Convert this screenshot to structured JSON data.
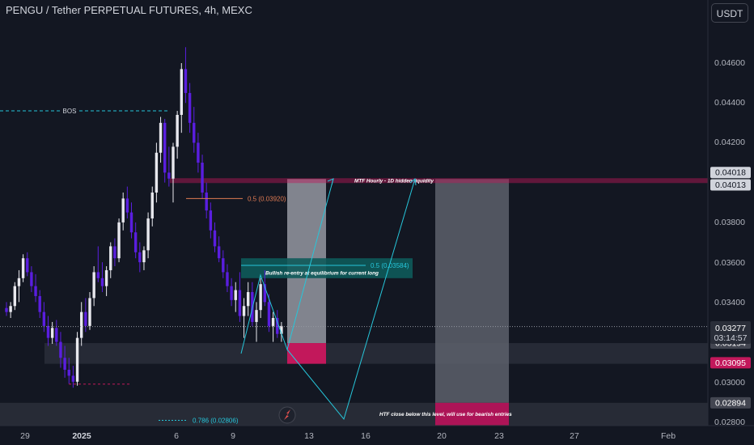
{
  "header": {
    "title": "PENGU / Tether PERPETUAL FUTURES, 4h, MEXC",
    "currency": "USDT"
  },
  "colors": {
    "background": "#131722",
    "bull_candle": "#e8e8ee",
    "bear_candle": "#5a1ee0",
    "teal": "#26c6da",
    "red": "#c2185b",
    "orange": "#e07b53"
  },
  "icons": {
    "logo": "tradingview-logo-icon"
  },
  "chart_data": {
    "type": "candlestick",
    "x_tick_labels": [
      "29",
      "2025",
      "6",
      "9",
      "13",
      "16",
      "20",
      "23",
      "27",
      "Feb"
    ],
    "y_tick_labels": [
      "0.02800",
      "0.03000",
      "0.03200",
      "0.03400",
      "0.03600",
      "0.03800",
      "0.04200",
      "0.04400",
      "0.04600"
    ],
    "ylim": [
      0.0279,
      0.0475
    ],
    "candles": [
      [
        0.0337,
        0.034,
        0.0333,
        0.0335
      ],
      [
        0.0335,
        0.034,
        0.0332,
        0.0338
      ],
      [
        0.0338,
        0.035,
        0.0336,
        0.0348
      ],
      [
        0.0348,
        0.0356,
        0.034,
        0.0352
      ],
      [
        0.0352,
        0.0364,
        0.035,
        0.0362
      ],
      [
        0.0362,
        0.0365,
        0.0353,
        0.0355
      ],
      [
        0.0355,
        0.0358,
        0.0345,
        0.0348
      ],
      [
        0.0348,
        0.0354,
        0.034,
        0.0343
      ],
      [
        0.0343,
        0.0346,
        0.0332,
        0.0335
      ],
      [
        0.0335,
        0.034,
        0.0325,
        0.0328
      ],
      [
        0.0328,
        0.0333,
        0.0318,
        0.0322
      ],
      [
        0.0322,
        0.033,
        0.0319,
        0.0327
      ],
      [
        0.0327,
        0.0331,
        0.0318,
        0.032
      ],
      [
        0.032,
        0.0325,
        0.0307,
        0.0312
      ],
      [
        0.0312,
        0.0318,
        0.0302,
        0.0306
      ],
      [
        0.0306,
        0.0312,
        0.0299,
        0.0303
      ],
      [
        0.0303,
        0.0308,
        0.0297,
        0.03
      ],
      [
        0.03,
        0.0325,
        0.0298,
        0.0322
      ],
      [
        0.0322,
        0.034,
        0.0318,
        0.0335
      ],
      [
        0.0335,
        0.0342,
        0.0325,
        0.0328
      ],
      [
        0.0328,
        0.0345,
        0.0326,
        0.0342
      ],
      [
        0.0342,
        0.0358,
        0.0338,
        0.0355
      ],
      [
        0.0355,
        0.0368,
        0.035,
        0.0352
      ],
      [
        0.0352,
        0.036,
        0.0345,
        0.0348
      ],
      [
        0.0348,
        0.0358,
        0.0343,
        0.0356
      ],
      [
        0.0356,
        0.037,
        0.0352,
        0.0368
      ],
      [
        0.0368,
        0.0372,
        0.0358,
        0.0362
      ],
      [
        0.0362,
        0.0382,
        0.036,
        0.038
      ],
      [
        0.038,
        0.0395,
        0.0376,
        0.0392
      ],
      [
        0.0392,
        0.0398,
        0.0382,
        0.0385
      ],
      [
        0.0385,
        0.039,
        0.0372,
        0.0375
      ],
      [
        0.0375,
        0.038,
        0.0362,
        0.0365
      ],
      [
        0.0365,
        0.037,
        0.0355,
        0.036
      ],
      [
        0.036,
        0.0368,
        0.0356,
        0.0366
      ],
      [
        0.0366,
        0.0385,
        0.0362,
        0.0382
      ],
      [
        0.0382,
        0.0398,
        0.0378,
        0.0395
      ],
      [
        0.0395,
        0.042,
        0.039,
        0.0415
      ],
      [
        0.0415,
        0.0433,
        0.041,
        0.043
      ],
      [
        0.043,
        0.0432,
        0.04,
        0.0405
      ],
      [
        0.0405,
        0.0418,
        0.0398,
        0.0402
      ],
      [
        0.0402,
        0.042,
        0.039,
        0.0418
      ],
      [
        0.0418,
        0.0436,
        0.0412,
        0.0434
      ],
      [
        0.0434,
        0.046,
        0.0425,
        0.0457
      ],
      [
        0.0457,
        0.0468,
        0.044,
        0.0445
      ],
      [
        0.0445,
        0.045,
        0.0425,
        0.043
      ],
      [
        0.043,
        0.0438,
        0.0415,
        0.042
      ],
      [
        0.042,
        0.0425,
        0.0405,
        0.041
      ],
      [
        0.041,
        0.0414,
        0.0392,
        0.0395
      ],
      [
        0.0395,
        0.04,
        0.0382,
        0.0386
      ],
      [
        0.0386,
        0.039,
        0.0372,
        0.0376
      ],
      [
        0.0376,
        0.038,
        0.0365,
        0.0368
      ],
      [
        0.0368,
        0.0373,
        0.036,
        0.0362
      ],
      [
        0.0362,
        0.0366,
        0.0352,
        0.0355
      ],
      [
        0.0355,
        0.0359,
        0.0345,
        0.0348
      ],
      [
        0.0348,
        0.0352,
        0.0338,
        0.0341
      ],
      [
        0.0341,
        0.035,
        0.0335,
        0.0346
      ],
      [
        0.0346,
        0.0355,
        0.033,
        0.0333
      ],
      [
        0.0333,
        0.0342,
        0.0322,
        0.0338
      ],
      [
        0.0338,
        0.035,
        0.0333,
        0.0345
      ],
      [
        0.0345,
        0.035,
        0.0328,
        0.033
      ],
      [
        0.033,
        0.034,
        0.032,
        0.0336
      ],
      [
        0.0336,
        0.0352,
        0.0332,
        0.0349
      ],
      [
        0.0349,
        0.0356,
        0.0338,
        0.034
      ],
      [
        0.034,
        0.0344,
        0.0325,
        0.0328
      ],
      [
        0.0328,
        0.0335,
        0.032,
        0.0332
      ],
      [
        0.0332,
        0.0336,
        0.0322,
        0.0324
      ],
      [
        0.0324,
        0.033,
        0.032,
        0.0328
      ]
    ],
    "current_price": "0.03277",
    "countdown": "03:14:57",
    "price_labels": [
      {
        "value": 0.04018,
        "text": "0.04018",
        "style": "light"
      },
      {
        "value": 0.04013,
        "text": "0.04013",
        "style": "light"
      },
      {
        "value": 0.03194,
        "text": "0.03194",
        "style": "gray"
      },
      {
        "value": 0.03095,
        "text": "0.03095",
        "style": "red"
      },
      {
        "value": 0.02894,
        "text": "0.02894",
        "style": "gray"
      }
    ],
    "annotations": {
      "bos": "BOS",
      "fib_05_upper": "0.5 (0.03920)",
      "fib_05_lower": "0.5 (0.03584)",
      "fib_0786": "0.786 (0.02806)",
      "bullish_note": "Bullish re-entry at equilibrium for current long",
      "liquidity_note": "MTF Hourly - 1D hidden liquidity",
      "htf_note": "HTF close below this level, will use for bearish entries"
    }
  }
}
